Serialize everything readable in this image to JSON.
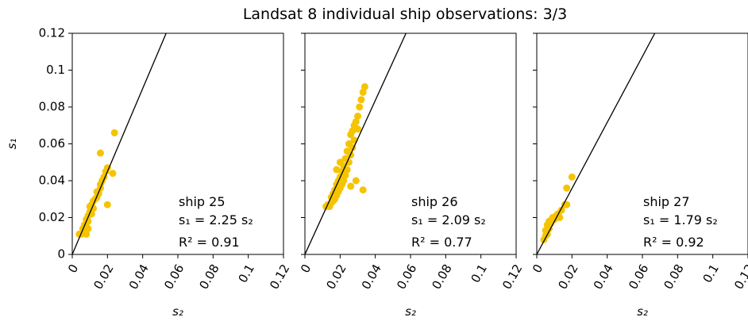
{
  "title": "Landsat 8 individual ship observations: 3/3",
  "chart_data": [
    {
      "type": "scatter",
      "xlabel": "s₂",
      "ylabel": "s₁",
      "color": "#f5c400",
      "x": [
        0.004,
        0.005,
        0.006,
        0.006,
        0.007,
        0.007,
        0.008,
        0.008,
        0.009,
        0.009,
        0.01,
        0.01,
        0.011,
        0.011,
        0.012,
        0.012,
        0.013,
        0.014,
        0.014,
        0.015,
        0.016,
        0.016,
        0.017,
        0.018,
        0.019,
        0.02,
        0.024,
        0.016,
        0.02,
        0.023,
        0.008,
        0.009
      ],
      "y": [
        0.011,
        0.011,
        0.012,
        0.014,
        0.013,
        0.016,
        0.015,
        0.019,
        0.021,
        0.018,
        0.023,
        0.026,
        0.022,
        0.027,
        0.025,
        0.029,
        0.03,
        0.031,
        0.034,
        0.033,
        0.036,
        0.038,
        0.04,
        0.042,
        0.045,
        0.047,
        0.066,
        0.055,
        0.027,
        0.044,
        0.011,
        0.014
      ],
      "fit_slope": 2.25,
      "annotation": [
        "ship 25",
        "s₁ = 2.25 s₂",
        "R² = 0.91"
      ],
      "xlim": [
        0,
        0.12
      ],
      "xticks": [
        0,
        0.02,
        0.04,
        0.06,
        0.08,
        0.1,
        0.12
      ],
      "ylim": [
        0,
        0.12
      ],
      "yticks": [
        0,
        0.02,
        0.04,
        0.06,
        0.08,
        0.1,
        0.12
      ],
      "ytick_labels": true
    },
    {
      "type": "scatter",
      "xlabel": "s₂",
      "color": "#f5c400",
      "x": [
        0.012,
        0.013,
        0.014,
        0.015,
        0.015,
        0.016,
        0.016,
        0.017,
        0.017,
        0.018,
        0.018,
        0.019,
        0.019,
        0.02,
        0.02,
        0.021,
        0.021,
        0.022,
        0.022,
        0.023,
        0.023,
        0.024,
        0.024,
        0.025,
        0.025,
        0.026,
        0.026,
        0.027,
        0.027,
        0.028,
        0.028,
        0.029,
        0.03,
        0.03,
        0.031,
        0.032,
        0.033,
        0.034,
        0.033,
        0.029,
        0.026,
        0.018,
        0.02
      ],
      "y": [
        0.026,
        0.027,
        0.026,
        0.028,
        0.031,
        0.029,
        0.033,
        0.03,
        0.035,
        0.032,
        0.038,
        0.034,
        0.04,
        0.036,
        0.042,
        0.038,
        0.045,
        0.04,
        0.048,
        0.043,
        0.052,
        0.046,
        0.056,
        0.05,
        0.06,
        0.054,
        0.065,
        0.058,
        0.067,
        0.062,
        0.07,
        0.072,
        0.075,
        0.068,
        0.08,
        0.084,
        0.088,
        0.091,
        0.035,
        0.04,
        0.037,
        0.046,
        0.05
      ],
      "fit_slope": 2.09,
      "annotation": [
        "ship 26",
        "s₁ = 2.09 s₂",
        "R² = 0.77"
      ],
      "xlim": [
        0,
        0.12
      ],
      "xticks": [
        0,
        0.02,
        0.04,
        0.06,
        0.08,
        0.1,
        0.12
      ],
      "ylim": [
        0,
        0.12
      ],
      "yticks": [
        0,
        0.02,
        0.04,
        0.06,
        0.08,
        0.1,
        0.12
      ],
      "ytick_labels": false
    },
    {
      "type": "scatter",
      "xlabel": "s₂",
      "color": "#f5c400",
      "x": [
        0.004,
        0.005,
        0.005,
        0.006,
        0.006,
        0.007,
        0.007,
        0.008,
        0.009,
        0.01,
        0.011,
        0.012,
        0.013,
        0.014,
        0.016,
        0.017,
        0.017,
        0.02
      ],
      "y": [
        0.008,
        0.01,
        0.013,
        0.011,
        0.016,
        0.014,
        0.018,
        0.017,
        0.02,
        0.019,
        0.021,
        0.022,
        0.02,
        0.024,
        0.027,
        0.036,
        0.027,
        0.042
      ],
      "fit_slope": 1.79,
      "annotation": [
        "ship 27",
        "s₁ = 1.79 s₂",
        "R² = 0.92"
      ],
      "xlim": [
        0,
        0.12
      ],
      "xticks": [
        0,
        0.02,
        0.04,
        0.06,
        0.08,
        0.1,
        0.12
      ],
      "ylim": [
        0,
        0.12
      ],
      "yticks": [
        0,
        0.02,
        0.04,
        0.06,
        0.08,
        0.1,
        0.12
      ],
      "ytick_labels": false
    }
  ]
}
